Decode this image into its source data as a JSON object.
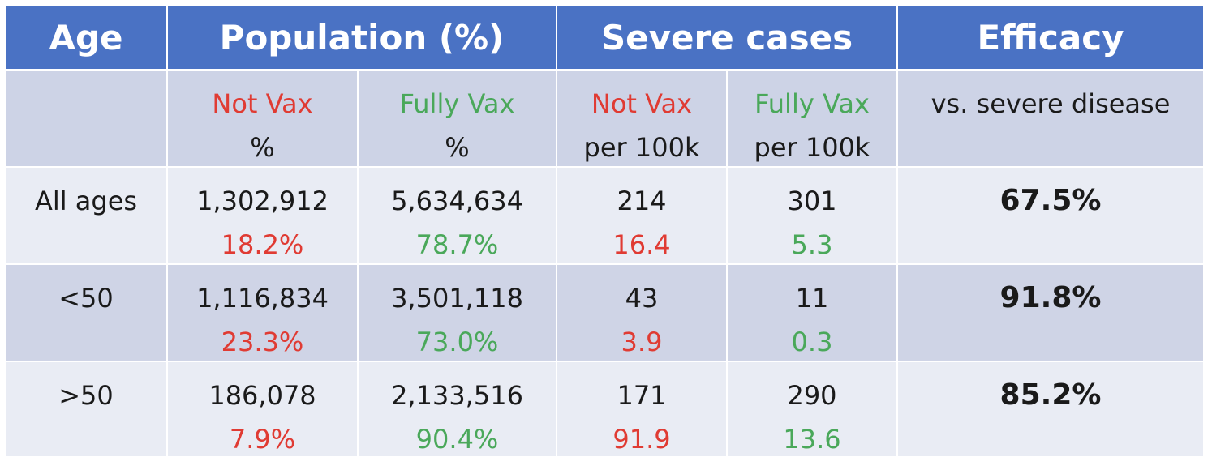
{
  "chart_data": {
    "type": "table",
    "header": {
      "age": "Age",
      "population": "Population (%)",
      "severe": "Severe cases",
      "efficacy": "Efficacy"
    },
    "subheader": {
      "not_vax": "Not Vax",
      "fully_vax": "Fully Vax",
      "pct": "%",
      "per100k": "per 100k",
      "efficacy_note": "vs. severe disease"
    },
    "colors": {
      "header_bg": "#4a72c4",
      "not_vax": "#e03b33",
      "fully_vax": "#4aa85a"
    },
    "rows": [
      {
        "age": "All ages",
        "pop_notvax": "1,302,912",
        "pop_notvax_pct": "18.2%",
        "pop_fullyvax": "5,634,634",
        "pop_fullyvax_pct": "78.7%",
        "sev_notvax": "214",
        "sev_notvax_rate": "16.4",
        "sev_fullyvax": "301",
        "sev_fullyvax_rate": "5.3",
        "efficacy": "67.5%"
      },
      {
        "age": "<50",
        "pop_notvax": "1,116,834",
        "pop_notvax_pct": "23.3%",
        "pop_fullyvax": "3,501,118",
        "pop_fullyvax_pct": "73.0%",
        "sev_notvax": "43",
        "sev_notvax_rate": "3.9",
        "sev_fullyvax": "11",
        "sev_fullyvax_rate": "0.3",
        "efficacy": "91.8%"
      },
      {
        "age": ">50",
        "pop_notvax": "186,078",
        "pop_notvax_pct": "7.9%",
        "pop_fullyvax": "2,133,516",
        "pop_fullyvax_pct": "90.4%",
        "sev_notvax": "171",
        "sev_notvax_rate": "91.9",
        "sev_fullyvax": "290",
        "sev_fullyvax_rate": "13.6",
        "efficacy": "85.2%"
      }
    ]
  }
}
